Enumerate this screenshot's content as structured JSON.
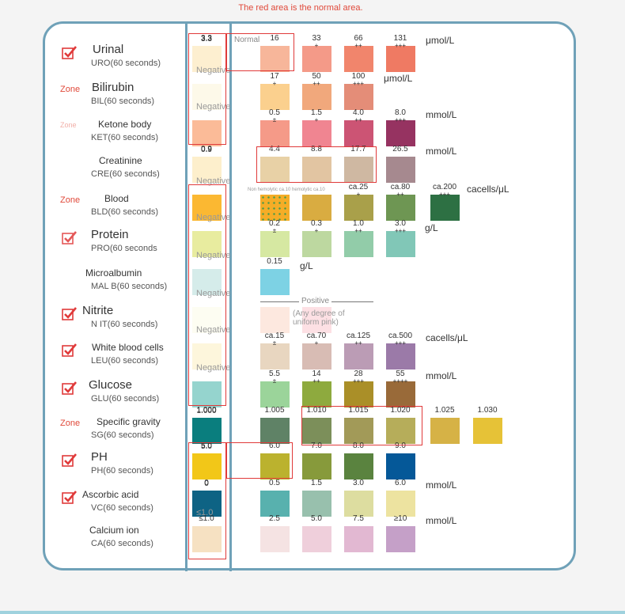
{
  "caption": "The red area is the normal area.",
  "normal_label": "Normal",
  "tests": [
    {
      "name": "Urinal",
      "sub": "URO(60 seconds)",
      "mark": "check",
      "normal": "3.3",
      "swatches": [
        {
          "label": "3.3",
          "color": "#fdefd0"
        },
        {
          "label": "16",
          "color": "#f7b69a"
        },
        {
          "label": "33",
          "sym": "+",
          "color": "#f49a88"
        },
        {
          "label": "66",
          "sym": "++",
          "color": "#f1856c"
        },
        {
          "label": "131",
          "sym": "+++",
          "color": "#ef7a63"
        }
      ],
      "unit": "μmol/L"
    },
    {
      "name": "Bilirubin",
      "sub": "BIL(60 seconds)",
      "mark": "zone",
      "zone": "Zone",
      "normal": "Negative",
      "swatches": [
        {
          "label": "",
          "color": "#fdf9e9"
        },
        {
          "label": "17",
          "sym": "+",
          "color": "#fbd08e"
        },
        {
          "label": "50",
          "sym": "++",
          "color": "#f1a87c"
        },
        {
          "label": "100",
          "sym": "+++",
          "color": "#e48d78"
        }
      ],
      "unit": "μmol/L"
    },
    {
      "name": "Ketone body",
      "sub": "KET(60 seconds)",
      "mark": "faded",
      "zone": "Zone",
      "normal": "Negative",
      "swatches": [
        {
          "label": "",
          "color": "#fbbb98"
        },
        {
          "label": "0.5",
          "sym": "±",
          "color": "#f59a88"
        },
        {
          "label": "1.5",
          "sym": "+",
          "color": "#f08591"
        },
        {
          "label": "4.0",
          "sym": "++",
          "color": "#cc5474"
        },
        {
          "label": "8.0",
          "sym": "+++",
          "color": "#963361"
        }
      ],
      "unit": "mmol/L"
    },
    {
      "name": "Creatinine",
      "sub": "CRE(60 seconds)",
      "mark": "none",
      "normal": "0.9",
      "swatches": [
        {
          "label": "0.9",
          "color": "#fdefcc"
        },
        {
          "label": "4.4",
          "color": "#e8d1a6"
        },
        {
          "label": "8.8",
          "color": "#e2c5a2"
        },
        {
          "label": "17.7",
          "color": "#cfb8a2"
        },
        {
          "label": "26.5",
          "color": "#a6898f"
        }
      ],
      "unit": "mmol/L"
    },
    {
      "name": "Blood",
      "sub": "BLD(60 seconds)",
      "mark": "zone",
      "zone": "Zone",
      "normal": "Negative",
      "swatches": [
        {
          "label": "",
          "color": "#fbb832"
        },
        {
          "label": "",
          "color": "#f5ad27",
          "spots": true
        },
        {
          "label": "",
          "color": "#d9ac41"
        },
        {
          "label": "ca.25",
          "sym": "+",
          "color": "#a9a04a"
        },
        {
          "label": "ca.80",
          "sym": "++",
          "color": "#6e9653"
        },
        {
          "label": "ca.200",
          "sym": "+++",
          "color": "#2d7043"
        }
      ],
      "note": "Non hemolytic    ca.10 hemolytic ca.10",
      "unit": "cacells/μL"
    },
    {
      "name": "Protein",
      "sub": "PRO(60 seconds",
      "mark": "check-partial",
      "normal": "Negative",
      "swatches": [
        {
          "label": "",
          "color": "#e8ec9f"
        },
        {
          "label": "0.2",
          "sym": "±",
          "color": "#d6e8a2"
        },
        {
          "label": "0.3",
          "sym": "+",
          "color": "#bdd8a0"
        },
        {
          "label": "1.0",
          "sym": "++",
          "color": "#92cca9"
        },
        {
          "label": "3.0",
          "sym": "+++",
          "color": "#81c7b7"
        }
      ],
      "unit": "g/L"
    },
    {
      "name": "Microalbumin",
      "sub": "MAL B(60 seconds)",
      "mark": "none",
      "normal": "Negative",
      "swatches": [
        {
          "label": "",
          "color": "#d5ecea"
        },
        {
          "label": "0.15",
          "color": "#7dd2e4"
        }
      ],
      "unit": "g/L"
    },
    {
      "name": "Nitrite",
      "sub": "N IT(60 seconds)",
      "mark": "check",
      "normal": "Negative",
      "swatches": [
        {
          "label": "",
          "color": "#fdfdf2"
        },
        {
          "label": "",
          "color": "#fde8df"
        },
        {
          "label": "",
          "color": "#fde0e4"
        }
      ],
      "positive": "Positive",
      "positive_note": "(Any degree of uniform pink)"
    },
    {
      "name": "White blood cells",
      "sub": "LEU(60 seconds)",
      "mark": "check",
      "normal": "Negative",
      "swatches": [
        {
          "label": "",
          "color": "#fdf6dc"
        },
        {
          "label": "ca.15",
          "sym": "±",
          "color": "#e8d6c0"
        },
        {
          "label": "ca.70",
          "sym": "+",
          "color": "#d8bcb4"
        },
        {
          "label": "ca.125",
          "sym": "++",
          "color": "#bb9cb5"
        },
        {
          "label": "ca.500",
          "sym": "+++",
          "color": "#9b7aa8"
        }
      ],
      "unit": "cacells/μL"
    },
    {
      "name": "Glucose",
      "sub": "GLU(60 seconds)",
      "mark": "check",
      "normal": "Negative",
      "swatches": [
        {
          "label": "",
          "color": "#95d4ce"
        },
        {
          "label": "5.5",
          "sym": "±",
          "color": "#9bd49a"
        },
        {
          "label": "14",
          "sym": "++",
          "color": "#8eaa3e"
        },
        {
          "label": "28",
          "sym": "+++",
          "color": "#aa8f28"
        },
        {
          "label": "55",
          "sym": "++++",
          "color": "#996a39"
        }
      ],
      "unit": "mmol/L"
    },
    {
      "name": "Specific gravity",
      "sub": "SG(60 seconds)",
      "mark": "zone",
      "zone": "Zone",
      "normal": "1.000",
      "swatches": [
        {
          "label": "1.000",
          "color": "#0a7e7e"
        },
        {
          "label": "1.005",
          "color": "#5f8266"
        },
        {
          "label": "1.010",
          "color": "#7c8f5a"
        },
        {
          "label": "1.015",
          "color": "#a29a58"
        },
        {
          "label": "1.020",
          "color": "#b6ad5a"
        },
        {
          "label": "1.025",
          "color": "#d6b246"
        },
        {
          "label": "1.030",
          "color": "#e6c237"
        }
      ]
    },
    {
      "name": "PH",
      "sub": "PH(60 seconds)",
      "mark": "check",
      "normal": "5.0",
      "swatches": [
        {
          "label": "5.0",
          "color": "#f2c718"
        },
        {
          "label": "6.0",
          "color": "#bbb22e"
        },
        {
          "label": "7.0",
          "color": "#879a3b"
        },
        {
          "label": "8.0",
          "color": "#5a833f"
        },
        {
          "label": "9.0",
          "color": "#055898"
        }
      ]
    },
    {
      "name": "Ascorbic acid",
      "sub": "VC(60 seconds)",
      "mark": "check",
      "normal": "0",
      "swatches": [
        {
          "label": "0",
          "color": "#0e6384"
        },
        {
          "label": "0.5",
          "color": "#58b1ae"
        },
        {
          "label": "1.5",
          "color": "#98c0ad"
        },
        {
          "label": "3.0",
          "color": "#dddda0"
        },
        {
          "label": "6.0",
          "color": "#ede3a0"
        }
      ],
      "unit": "mmol/L"
    },
    {
      "name": "Calcium ion",
      "sub": "CA(60 seconds)",
      "mark": "none",
      "normal": "≤1.0",
      "swatches": [
        {
          "label": "≤1.0",
          "color": "#f6e1c2"
        },
        {
          "label": "2.5",
          "color": "#f5e3e3"
        },
        {
          "label": "5.0",
          "color": "#efcfdb"
        },
        {
          "label": "7.5",
          "color": "#e2b8d2"
        },
        {
          "label": "≥10",
          "color": "#c5a0c8"
        }
      ],
      "unit": "mmol/L"
    }
  ],
  "accent_red": "#e03a3a",
  "frame_color": "#6fa1b8"
}
